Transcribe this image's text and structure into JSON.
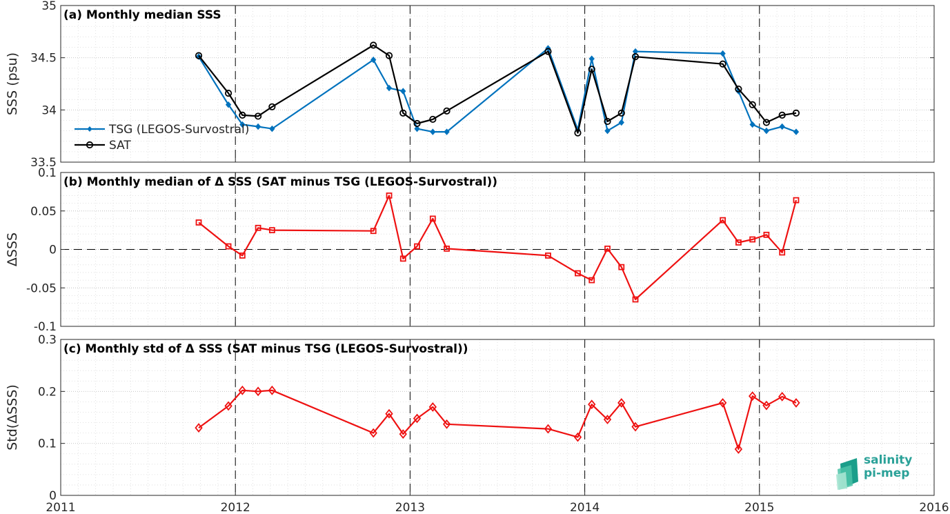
{
  "figure_title": "",
  "logo": {
    "line1": "salinity",
    "line2": "pi-mep"
  },
  "colors": {
    "tsg": "#0072bd",
    "sat": "#000000",
    "delta": "#ee1111",
    "grid": "#bdbdbd",
    "logo": "#2aa198"
  },
  "chart_data": [
    {
      "panel": "a",
      "type": "line",
      "title": "(a) Monthly median SSS",
      "xlabel": "",
      "ylabel": "SSS (psu)",
      "xlim": [
        2011,
        2016
      ],
      "ylim": [
        33.5,
        35
      ],
      "yticks": [
        "33.5",
        "34",
        "34.5",
        "35"
      ],
      "xticks": [
        2011,
        2012,
        2013,
        2014,
        2015,
        2016
      ],
      "grid": true,
      "legend": "left",
      "year_lines": [
        2012,
        2013,
        2014,
        2015
      ],
      "x": [
        2011.79,
        2011.96,
        2012.04,
        2012.13,
        2012.21,
        2012.79,
        2012.88,
        2012.96,
        2013.04,
        2013.13,
        2013.21,
        2013.79,
        2013.96,
        2014.04,
        2014.13,
        2014.21,
        2014.29,
        2014.79,
        2014.88,
        2014.96,
        2015.04,
        2015.13,
        2015.21
      ],
      "series": [
        {
          "name": "TSG (LEGOS-Survostral)",
          "marker": "diamond-filled",
          "values": [
            34.51,
            34.05,
            33.86,
            33.84,
            33.82,
            34.48,
            34.21,
            34.18,
            33.82,
            33.79,
            33.79,
            34.59,
            33.81,
            34.49,
            33.8,
            33.88,
            34.56,
            34.54,
            34.18,
            33.86,
            33.8,
            33.84,
            33.79
          ]
        },
        {
          "name": "SAT",
          "marker": "circle",
          "values": [
            34.52,
            34.16,
            33.95,
            33.94,
            34.03,
            34.62,
            34.52,
            33.97,
            33.87,
            33.91,
            33.99,
            34.56,
            33.78,
            34.39,
            33.89,
            33.97,
            34.51,
            34.44,
            34.2,
            34.05,
            33.88,
            33.95,
            33.97
          ]
        }
      ]
    },
    {
      "panel": "b",
      "type": "line",
      "title": "(b) Monthly median of Δ SSS (SAT minus TSG (LEGOS-Survostral))",
      "xlabel": "",
      "ylabel": "ΔSSS",
      "xlim": [
        2011,
        2016
      ],
      "ylim": [
        -0.1,
        0.1
      ],
      "yticks": [
        "-0.1",
        "-0.05",
        "0",
        "0.05",
        "0.1"
      ],
      "xticks": [
        2011,
        2012,
        2013,
        2014,
        2015,
        2016
      ],
      "grid": true,
      "zero_line": true,
      "year_lines": [
        2012,
        2013,
        2014,
        2015
      ],
      "x": [
        2011.79,
        2011.96,
        2012.04,
        2012.13,
        2012.21,
        2012.79,
        2012.88,
        2012.96,
        2013.04,
        2013.13,
        2013.21,
        2013.79,
        2013.96,
        2014.04,
        2014.13,
        2014.21,
        2014.29,
        2014.79,
        2014.88,
        2014.96,
        2015.04,
        2015.13,
        2015.21
      ],
      "series": [
        {
          "name": "",
          "marker": "square",
          "values": [
            0.035,
            0.004,
            -0.008,
            0.028,
            0.025,
            0.024,
            0.07,
            -0.012,
            0.004,
            0.04,
            0.001,
            -0.008,
            -0.031,
            -0.04,
            0.001,
            -0.023,
            -0.065,
            0.038,
            0.009,
            0.013,
            0.019,
            -0.004,
            0.064
          ]
        }
      ]
    },
    {
      "panel": "c",
      "type": "line",
      "title": "(c) Monthly std of Δ SSS (SAT minus TSG (LEGOS-Survostral))",
      "xlabel": "",
      "ylabel": "Std(ΔSSS)",
      "xlim": [
        2011,
        2016
      ],
      "ylim": [
        0,
        0.3
      ],
      "yticks": [
        "0",
        "0.1",
        "0.2",
        "0.3"
      ],
      "xticks": [
        2011,
        2012,
        2013,
        2014,
        2015,
        2016
      ],
      "grid": true,
      "year_lines": [
        2012,
        2013,
        2014,
        2015
      ],
      "x": [
        2011.79,
        2011.96,
        2012.04,
        2012.13,
        2012.21,
        2012.79,
        2012.88,
        2012.96,
        2013.04,
        2013.13,
        2013.21,
        2013.79,
        2013.96,
        2014.04,
        2014.13,
        2014.21,
        2014.29,
        2014.79,
        2014.88,
        2014.96,
        2015.04,
        2015.13,
        2015.21
      ],
      "series": [
        {
          "name": "",
          "marker": "diamond",
          "values": [
            0.13,
            0.172,
            0.202,
            0.2,
            0.202,
            0.12,
            0.157,
            0.118,
            0.148,
            0.17,
            0.137,
            0.128,
            0.112,
            0.175,
            0.146,
            0.178,
            0.132,
            0.178,
            0.089,
            0.191,
            0.173,
            0.19,
            0.178
          ]
        }
      ]
    }
  ]
}
